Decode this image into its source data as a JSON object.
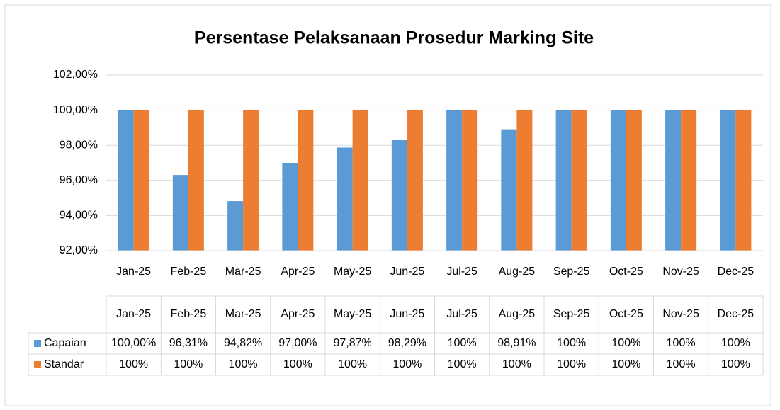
{
  "chart_data": {
    "type": "bar",
    "title": "Persentase Pelaksanaan Prosedur Marking Site",
    "categories": [
      "Jan-25",
      "Feb-25",
      "Mar-25",
      "Apr-25",
      "May-25",
      "Jun-25",
      "Jul-25",
      "Aug-25",
      "Sep-25",
      "Oct-25",
      "Nov-25",
      "Dec-25"
    ],
    "series": [
      {
        "name": "Capaian",
        "color": "#5b9bd5",
        "values": [
          100,
          96.31,
          94.82,
          97,
          97.87,
          98.29,
          100,
          98.91,
          100,
          100,
          100,
          100
        ],
        "value_labels": [
          "100,00%",
          "96,31%",
          "94,82%",
          "97,00%",
          "97,87%",
          "98,29%",
          "100%",
          "98,91%",
          "100%",
          "100%",
          "100%",
          "100%"
        ]
      },
      {
        "name": "Standar",
        "color": "#ed7d31",
        "values": [
          100,
          100,
          100,
          100,
          100,
          100,
          100,
          100,
          100,
          100,
          100,
          100
        ],
        "value_labels": [
          "100%",
          "100%",
          "100%",
          "100%",
          "100%",
          "100%",
          "100%",
          "100%",
          "100%",
          "100%",
          "100%",
          "100%"
        ]
      }
    ],
    "ylim": [
      92,
      102
    ],
    "yticks": [
      {
        "value": 92,
        "label": "92,00%"
      },
      {
        "value": 94,
        "label": "94,00%"
      },
      {
        "value": 96,
        "label": "96,00%"
      },
      {
        "value": 98,
        "label": "98,00%"
      },
      {
        "value": 100,
        "label": "100,00%"
      },
      {
        "value": 102,
        "label": "102,00%"
      }
    ],
    "grid": true
  }
}
